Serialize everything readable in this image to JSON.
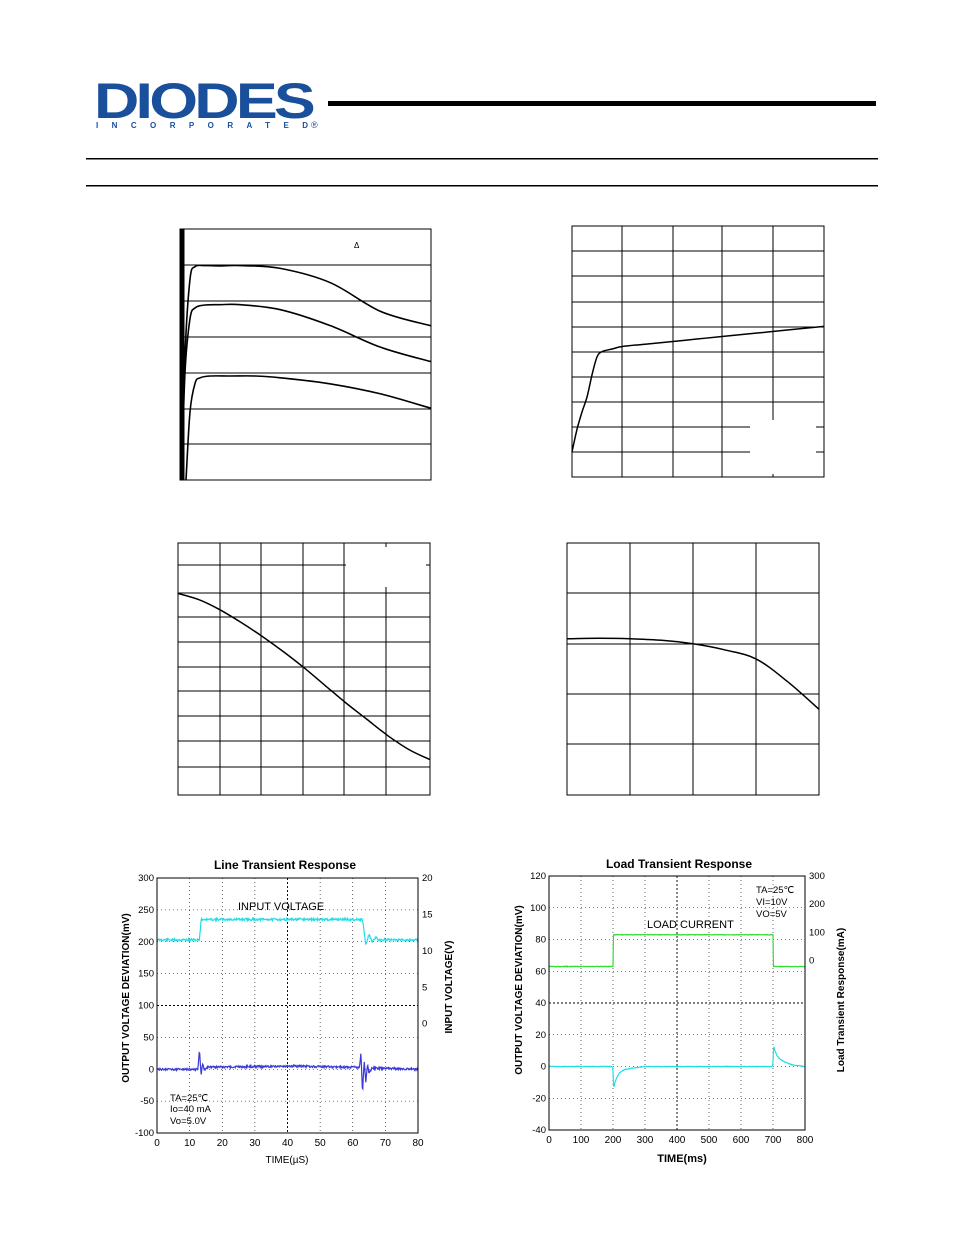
{
  "header": {
    "brand": "DIODES",
    "tagline": "INCORPORATED",
    "registered": "®",
    "brand_color": "#1a4f9c"
  },
  "chart_data": [
    {
      "id": "chart1",
      "type": "line",
      "title": "",
      "annotation": "Δ",
      "xlim": [
        0,
        5
      ],
      "ylim": [
        0,
        7
      ],
      "grid": true,
      "series": [
        {
          "name": "curve-top",
          "x": [
            0.03,
            0.1,
            0.2,
            0.3,
            0.5,
            0.8,
            1.2,
            2.0,
            3.0,
            4.0,
            5.0
          ],
          "y": [
            0,
            3.5,
            5.6,
            5.95,
            5.98,
            5.97,
            5.98,
            5.9,
            5.5,
            4.7,
            4.3
          ]
        },
        {
          "name": "curve-middle",
          "x": [
            0.03,
            0.1,
            0.2,
            0.3,
            0.5,
            0.8,
            1.2,
            2.0,
            3.0,
            4.0,
            5.0
          ],
          "y": [
            0,
            3.0,
            4.5,
            4.8,
            4.88,
            4.89,
            4.89,
            4.75,
            4.3,
            3.7,
            3.3
          ]
        },
        {
          "name": "curve-bottom",
          "x": [
            0.12,
            0.2,
            0.3,
            0.4,
            0.6,
            1.0,
            1.5,
            2.0,
            3.0,
            4.0,
            5.0
          ],
          "y": [
            0,
            1.9,
            2.7,
            2.85,
            2.9,
            2.9,
            2.9,
            2.85,
            2.68,
            2.4,
            2.0
          ]
        }
      ]
    },
    {
      "id": "chart2",
      "type": "line",
      "title": "",
      "xlim": [
        0,
        5
      ],
      "ylim": [
        0,
        10
      ],
      "grid": true,
      "series": [
        {
          "name": "curve",
          "x": [
            0,
            0.1,
            0.2,
            0.3,
            0.4,
            0.5,
            0.6,
            0.8,
            1.0,
            1.5,
            2.0,
            2.5,
            3.0,
            4.0,
            5.0
          ],
          "y": [
            1.0,
            1.9,
            2.6,
            3.2,
            4.1,
            4.8,
            5.0,
            5.1,
            5.2,
            5.3,
            5.4,
            5.5,
            5.6,
            5.8,
            6.0
          ]
        }
      ]
    },
    {
      "id": "chart3",
      "type": "line",
      "title": "",
      "xlim": [
        0,
        6
      ],
      "ylim": [
        0,
        10
      ],
      "grid": true,
      "series": [
        {
          "name": "curve",
          "x": [
            0,
            0.5,
            1,
            1.5,
            2,
            2.5,
            3,
            3.5,
            4,
            4.5,
            5,
            5.5,
            6
          ],
          "y": [
            8.0,
            7.75,
            7.35,
            6.85,
            6.3,
            5.7,
            5.05,
            4.35,
            3.65,
            3.0,
            2.35,
            1.8,
            1.4
          ]
        }
      ]
    },
    {
      "id": "chart4",
      "type": "line",
      "title": "",
      "xlim": [
        0,
        4
      ],
      "ylim": [
        0,
        5
      ],
      "grid": true,
      "series": [
        {
          "name": "curve",
          "x": [
            0,
            0.5,
            1,
            1.5,
            2,
            2.5,
            3,
            3.5,
            4
          ],
          "y": [
            3.1,
            3.11,
            3.1,
            3.07,
            3.0,
            2.88,
            2.7,
            2.25,
            1.7
          ]
        }
      ]
    },
    {
      "id": "line-transient",
      "type": "line",
      "title": "Line Transient Response",
      "xlabel": "TIME(µS)",
      "ylabel": "OUTPUT VOLTAGE DEVIATION(mV)",
      "y2label": "INPUT VOLTAGE(V)",
      "xlim": [
        0,
        80
      ],
      "ylim": [
        -100,
        300
      ],
      "y2lim": [
        -15,
        20
      ],
      "x_ticks": [
        "0",
        "10",
        "20",
        "30",
        "40",
        "50",
        "60",
        "70",
        "80"
      ],
      "y_ticks": [
        "300",
        "250",
        "200",
        "150",
        "100",
        "50",
        "0",
        "-50",
        "-100"
      ],
      "y2_ticks": [
        "20",
        "15",
        "10",
        "5",
        "0"
      ],
      "grid": true,
      "annotations": {
        "input_label": "INPUT VOLTAGE",
        "cond1": "TA=25℃",
        "cond2": "Io=40 mA",
        "cond3": "Vo=5.0V"
      },
      "series": [
        {
          "name": "input-voltage",
          "color": "#22dde6",
          "x": [
            0,
            13,
            13.5,
            63,
            63.5,
            64,
            65,
            66,
            67,
            68,
            80
          ],
          "y": [
            203,
            203,
            235,
            235,
            215,
            195,
            212,
            199,
            207,
            203,
            203
          ]
        },
        {
          "name": "output-deviation",
          "color": "#3a3ad6",
          "x": [
            0,
            12.5,
            13,
            13.5,
            14,
            14.5,
            15,
            40,
            62,
            62.5,
            63,
            63.5,
            64,
            64.5,
            65,
            66,
            80
          ],
          "y": [
            0,
            0,
            30,
            -8,
            8,
            -2,
            3,
            5,
            3,
            25,
            -38,
            15,
            -20,
            8,
            -6,
            2,
            0
          ]
        }
      ]
    },
    {
      "id": "load-transient",
      "type": "line",
      "title": "Load Transient Response",
      "xlabel": "TIME(ms)",
      "ylabel": "OUTPUT VOLTAGE DEVIATION(mV)",
      "y2label": "Load Transient Response(mA)",
      "xlim": [
        0,
        800
      ],
      "ylim": [
        -40,
        120
      ],
      "y2lim": [
        -600,
        300
      ],
      "x_ticks": [
        "0",
        "100",
        "200",
        "300",
        "400",
        "500",
        "600",
        "700",
        "800"
      ],
      "y_ticks": [
        "120",
        "100",
        "80",
        "60",
        "40",
        "20",
        "0",
        "-20",
        "-40"
      ],
      "y2_ticks": [
        "300",
        "200",
        "100",
        "0"
      ],
      "grid": true,
      "annotations": {
        "load_label": "LOAD CURRENT",
        "cond1": "TA=25℃",
        "cond2": "VI=10V",
        "cond3": "VO=5V"
      },
      "series": [
        {
          "name": "load-current",
          "color": "#33dd33",
          "x": [
            0,
            200,
            201,
            700,
            701,
            800
          ],
          "y": [
            63,
            63,
            83,
            83,
            63,
            63
          ]
        },
        {
          "name": "output-deviation",
          "color": "#22dde6",
          "x": [
            0,
            198,
            200,
            202,
            206,
            212,
            220,
            235,
            260,
            300,
            690,
            698,
            700,
            702,
            706,
            712,
            720,
            735,
            760,
            800
          ],
          "y": [
            0,
            0,
            -3,
            -14,
            -10,
            -7,
            -4,
            -2,
            -1,
            0,
            0,
            0,
            3,
            13,
            10,
            7,
            5,
            3,
            1,
            0
          ]
        }
      ]
    }
  ]
}
